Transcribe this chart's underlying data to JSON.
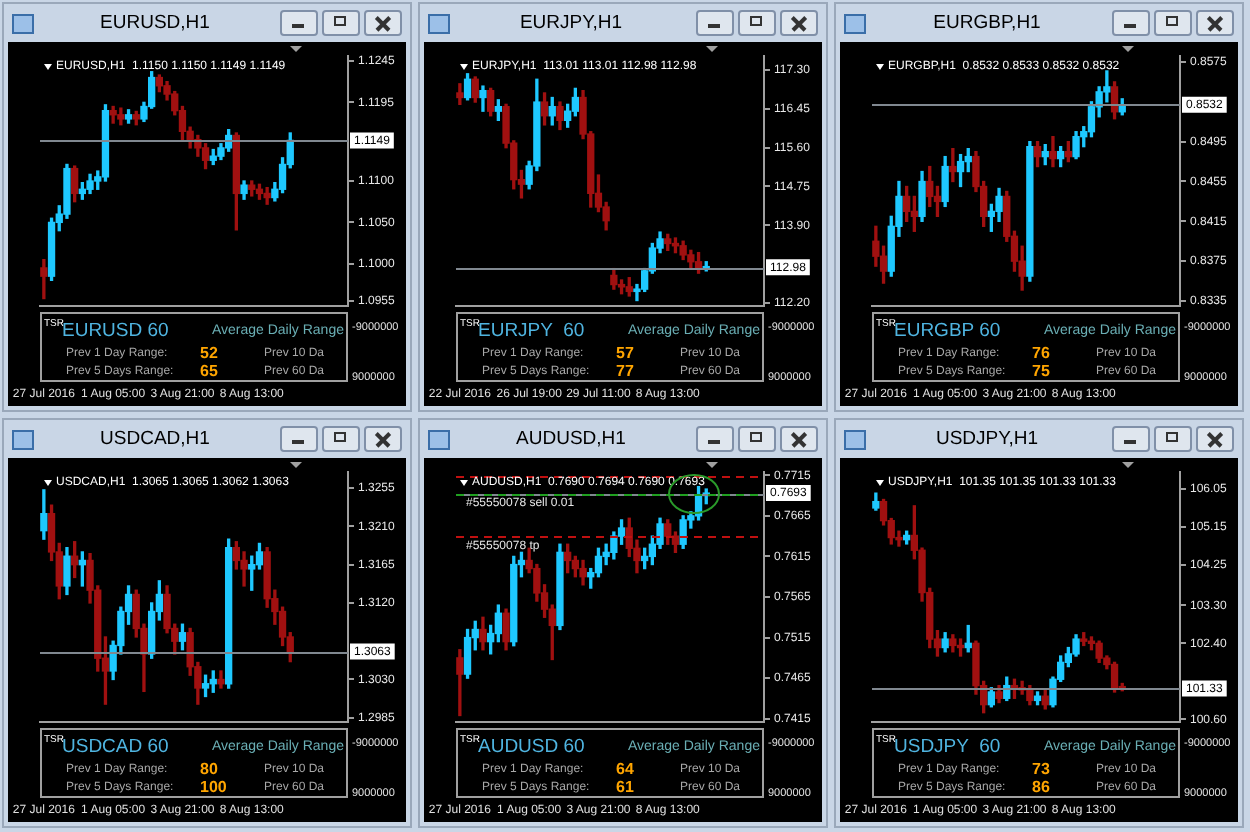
{
  "chart_data": [
    {
      "type": "candlestick",
      "title": "EURUSD,H1",
      "subtitle": "EURUSD,H1  1.1150 1.1150 1.1149 1.1149",
      "categories": [
        "27 Jul 2016",
        null,
        null,
        null,
        null,
        null,
        null,
        null,
        null,
        "1 Aug 05:00",
        null,
        null,
        null,
        null,
        null,
        null,
        null,
        null,
        "3 Aug 21:00",
        null,
        null,
        null,
        null,
        null,
        null,
        null,
        null,
        "8 Aug 13:00",
        null,
        null,
        null,
        null,
        null,
        null,
        null,
        null,
        null,
        null,
        null,
        null
      ],
      "ohlc": [
        [
          1.0995,
          1.1005,
          1.0958,
          1.0985
        ],
        [
          1.0985,
          1.1055,
          1.098,
          1.105
        ],
        [
          1.105,
          1.107,
          1.104,
          1.106
        ],
        [
          1.106,
          1.112,
          1.1055,
          1.1115
        ],
        [
          1.1115,
          1.1118,
          1.1075,
          1.1085
        ],
        [
          1.1085,
          1.1098,
          1.1078,
          1.109
        ],
        [
          1.109,
          1.1108,
          1.1085,
          1.11
        ],
        [
          1.11,
          1.1112,
          1.109,
          1.1105
        ],
        [
          1.1105,
          1.1192,
          1.11,
          1.1185
        ],
        [
          1.1185,
          1.119,
          1.117,
          1.118
        ],
        [
          1.118,
          1.1188,
          1.1168,
          1.1175
        ],
        [
          1.1175,
          1.1186,
          1.117,
          1.118
        ],
        [
          1.118,
          1.1184,
          1.1168,
          1.1175
        ],
        [
          1.1175,
          1.1195,
          1.1172,
          1.119
        ],
        [
          1.119,
          1.1232,
          1.1188,
          1.1225
        ],
        [
          1.1225,
          1.1228,
          1.1208,
          1.1215
        ],
        [
          1.1215,
          1.122,
          1.1198,
          1.1205
        ],
        [
          1.1205,
          1.1208,
          1.118,
          1.1185
        ],
        [
          1.1185,
          1.119,
          1.115,
          1.116
        ],
        [
          1.116,
          1.1165,
          1.114,
          1.115
        ],
        [
          1.115,
          1.1155,
          1.113,
          1.114
        ],
        [
          1.114,
          1.1145,
          1.1115,
          1.1125
        ],
        [
          1.1125,
          1.1138,
          1.112,
          1.113
        ],
        [
          1.113,
          1.1145,
          1.1126,
          1.114
        ],
        [
          1.114,
          1.1162,
          1.1136,
          1.1155
        ],
        [
          1.1155,
          1.1158,
          1.1041,
          1.1085
        ],
        [
          1.1085,
          1.11,
          1.1078,
          1.1095
        ],
        [
          1.1095,
          1.11,
          1.1082,
          1.109
        ],
        [
          1.109,
          1.1096,
          1.1078,
          1.1085
        ],
        [
          1.1085,
          1.1092,
          1.1072,
          1.108
        ],
        [
          1.108,
          1.1098,
          1.1076,
          1.109
        ],
        [
          1.109,
          1.1128,
          1.1086,
          1.112
        ],
        [
          1.112,
          1.1158,
          1.1116,
          1.1149
        ],
        null,
        null,
        null,
        null,
        null,
        null,
        null
      ],
      "colors": [
        "#a01010",
        "#1ec8ff",
        "#1ec8ff",
        "#1ec8ff",
        "#a01010",
        "#1ec8ff",
        "#1ec8ff",
        "#1ec8ff",
        "#1ec8ff",
        "#a01010",
        "#a01010",
        "#1ec8ff",
        "#a01010",
        "#1ec8ff",
        "#1ec8ff",
        "#a01010",
        "#a01010",
        "#a01010",
        "#a01010",
        "#a01010",
        "#a01010",
        "#a01010",
        "#1ec8ff",
        "#1ec8ff",
        "#1ec8ff",
        "#a01010",
        "#1ec8ff",
        "#a01010",
        "#a01010",
        "#a01010",
        "#1ec8ff",
        "#1ec8ff",
        "#1ec8ff",
        null,
        null,
        null,
        null,
        null,
        null,
        null
      ],
      "ylim": [
        1.0949,
        1.1251
      ],
      "yticks": [
        1.0955,
        {
          "value": 1.1,
          "label": "1.1000"
        },
        {
          "value": 1.105,
          "label": "1.1050"
        },
        {
          "value": 1.11,
          "label": "1.1100"
        },
        1.1195,
        1.1245
      ],
      "ref_lines": [
        {
          "axis": "y",
          "value": 1.1149,
          "label": "1.1149",
          "color": "#808890"
        }
      ],
      "annotations": [
        "TSR",
        "EURUSD 60",
        "Average Daily Range",
        "Prev 1 Day Range:",
        "52",
        "Prev 10 Da",
        "Prev 5 Days Range:",
        "65",
        "Prev 60 Da",
        "-9000000",
        "9000000"
      ]
    },
    {
      "type": "candlestick",
      "title": "EURJPY,H1",
      "subtitle": "EURJPY,H1  113.01 113.01 112.98 112.98",
      "categories": [
        "22 Jul 2016",
        null,
        null,
        null,
        null,
        null,
        null,
        null,
        null,
        "26 Jul 19:00",
        null,
        null,
        null,
        null,
        null,
        null,
        null,
        null,
        "29 Jul 11:00",
        null,
        null,
        null,
        null,
        null,
        null,
        null,
        null,
        "8 Aug 13:00",
        null,
        null,
        null,
        null,
        null,
        null,
        null,
        null,
        null,
        null,
        null,
        null
      ],
      "ohlc": [
        [
          116.8,
          117,
          116.55,
          116.7
        ],
        [
          116.7,
          117.22,
          116.65,
          117.1
        ],
        [
          117.1,
          117.15,
          116.6,
          116.7
        ],
        [
          116.7,
          116.95,
          116.4,
          116.85
        ],
        [
          116.85,
          116.9,
          116.3,
          116.4
        ],
        [
          116.4,
          116.65,
          116.2,
          116.5
        ],
        [
          116.5,
          116.55,
          115.6,
          115.7
        ],
        [
          115.7,
          115.75,
          114.7,
          114.9
        ],
        [
          114.9,
          115.1,
          114.5,
          114.8
        ],
        [
          114.8,
          115.3,
          114.7,
          115.2
        ],
        [
          115.2,
          117.1,
          115.1,
          116.6
        ],
        [
          116.6,
          116.8,
          116.1,
          116.3
        ],
        [
          116.3,
          116.7,
          116.1,
          116.5
        ],
        [
          116.5,
          116.6,
          116,
          116.2
        ],
        [
          116.2,
          116.55,
          116.05,
          116.4
        ],
        [
          116.4,
          116.9,
          116.3,
          116.7
        ],
        [
          116.7,
          116.85,
          115.8,
          115.9
        ],
        [
          115.9,
          115.95,
          114.3,
          114.6
        ],
        [
          114.6,
          115,
          114.2,
          114.3
        ],
        [
          114.3,
          114.4,
          113.8,
          114
        ],
        [
          112.8,
          112.95,
          112.5,
          112.6
        ],
        [
          112.6,
          112.7,
          112.4,
          112.55
        ],
        [
          112.55,
          112.75,
          112.35,
          112.45
        ],
        [
          112.45,
          112.6,
          112.25,
          112.5
        ],
        [
          112.5,
          112.95,
          112.45,
          112.9
        ],
        [
          112.9,
          113.5,
          112.85,
          113.4
        ],
        [
          113.4,
          113.75,
          113.3,
          113.6
        ],
        [
          113.6,
          113.7,
          113.35,
          113.5
        ],
        [
          113.5,
          113.62,
          113.3,
          113.45
        ],
        [
          113.45,
          113.55,
          113.15,
          113.25
        ],
        [
          113.25,
          113.35,
          112.95,
          113.1
        ],
        [
          113.1,
          113.3,
          112.85,
          112.95
        ],
        [
          112.95,
          113.1,
          112.9,
          112.98
        ],
        null,
        null,
        null,
        null,
        null,
        null,
        null
      ],
      "colors": [
        "#a01010",
        "#1ec8ff",
        "#a01010",
        "#1ec8ff",
        "#a01010",
        "#1ec8ff",
        "#a01010",
        "#a01010",
        "#a01010",
        "#1ec8ff",
        "#1ec8ff",
        "#a01010",
        "#1ec8ff",
        "#a01010",
        "#1ec8ff",
        "#1ec8ff",
        "#a01010",
        "#a01010",
        "#a01010",
        "#a01010",
        "#a01010",
        "#a01010",
        "#a01010",
        "#1ec8ff",
        "#1ec8ff",
        "#1ec8ff",
        "#1ec8ff",
        "#a01010",
        "#a01010",
        "#a01010",
        "#a01010",
        "#a01010",
        "#1ec8ff",
        null,
        null,
        null,
        null,
        null,
        null,
        null
      ],
      "ylim": [
        112.13,
        117.61
      ],
      "yticks": [
        {
          "value": 112.2,
          "label": "112.20"
        },
        {
          "value": 113.9,
          "label": "113.90"
        },
        114.75,
        {
          "value": 115.6,
          "label": "115.60"
        },
        116.45,
        {
          "value": 117.3,
          "label": "117.30"
        }
      ],
      "ref_lines": [
        {
          "axis": "y",
          "value": 112.98,
          "label": "112.98",
          "color": "#808890"
        }
      ],
      "annotations": [
        "TSR",
        "EURJPY  60",
        "Average Daily Range",
        "Prev 1 Day Range:",
        "57",
        "Prev 10 Da",
        "Prev 5 Days Range:",
        "77",
        "Prev 60 Da",
        "-9000000",
        "9000000"
      ]
    },
    {
      "type": "candlestick",
      "title": "EURGBP,H1",
      "subtitle": "EURGBP,H1  0.8532 0.8533 0.8532 0.8532",
      "categories": [
        "27 Jul 2016",
        null,
        null,
        null,
        null,
        null,
        null,
        null,
        null,
        "1 Aug 05:00",
        null,
        null,
        null,
        null,
        null,
        null,
        null,
        null,
        "3 Aug 21:00",
        null,
        null,
        null,
        null,
        null,
        null,
        null,
        null,
        "8 Aug 13:00",
        null,
        null,
        null,
        null,
        null,
        null,
        null,
        null,
        null,
        null,
        null,
        null
      ],
      "ohlc": [
        [
          0.8395,
          0.841,
          0.837,
          0.838
        ],
        [
          0.838,
          0.839,
          0.8353,
          0.8365
        ],
        [
          0.8365,
          0.842,
          0.836,
          0.841
        ],
        [
          0.841,
          0.8455,
          0.84,
          0.844
        ],
        [
          0.844,
          0.845,
          0.8415,
          0.8425
        ],
        [
          0.8425,
          0.844,
          0.8405,
          0.842
        ],
        [
          0.842,
          0.8465,
          0.8415,
          0.8455
        ],
        [
          0.8455,
          0.847,
          0.843,
          0.844
        ],
        [
          0.844,
          0.845,
          0.842,
          0.8435
        ],
        [
          0.8435,
          0.848,
          0.843,
          0.847
        ],
        [
          0.847,
          0.8488,
          0.8455,
          0.8465
        ],
        [
          0.8465,
          0.8482,
          0.845,
          0.8475
        ],
        [
          0.8475,
          0.8488,
          0.8465,
          0.848
        ],
        [
          0.848,
          0.8485,
          0.8445,
          0.845
        ],
        [
          0.845,
          0.8455,
          0.841,
          0.842
        ],
        [
          0.842,
          0.8432,
          0.8405,
          0.8425
        ],
        [
          0.8425,
          0.8448,
          0.8415,
          0.844
        ],
        [
          0.844,
          0.8445,
          0.8395,
          0.84
        ],
        [
          0.84,
          0.8405,
          0.8365,
          0.8375
        ],
        [
          0.8375,
          0.839,
          0.8346,
          0.836
        ],
        [
          0.836,
          0.8495,
          0.8355,
          0.849
        ],
        [
          0.849,
          0.8495,
          0.847,
          0.848
        ],
        [
          0.848,
          0.8492,
          0.8472,
          0.8485
        ],
        [
          0.8485,
          0.85,
          0.847,
          0.8478
        ],
        [
          0.8478,
          0.849,
          0.847,
          0.8485
        ],
        [
          0.8485,
          0.8495,
          0.8475,
          0.848
        ],
        [
          0.848,
          0.8505,
          0.8478,
          0.85
        ],
        [
          0.85,
          0.851,
          0.849,
          0.8505
        ],
        [
          0.8505,
          0.8535,
          0.85,
          0.853
        ],
        [
          0.853,
          0.855,
          0.852,
          0.8545
        ],
        [
          0.8545,
          0.8566,
          0.8535,
          0.855
        ],
        [
          0.855,
          0.8555,
          0.8518,
          0.8525
        ],
        [
          0.8525,
          0.8538,
          0.8522,
          0.8532
        ],
        null,
        null,
        null,
        null,
        null,
        null,
        null
      ],
      "colors": [
        "#a01010",
        "#a01010",
        "#1ec8ff",
        "#1ec8ff",
        "#a01010",
        "#a01010",
        "#1ec8ff",
        "#a01010",
        "#a01010",
        "#1ec8ff",
        "#a01010",
        "#1ec8ff",
        "#1ec8ff",
        "#a01010",
        "#a01010",
        "#1ec8ff",
        "#1ec8ff",
        "#a01010",
        "#a01010",
        "#a01010",
        "#1ec8ff",
        "#a01010",
        "#1ec8ff",
        "#a01010",
        "#1ec8ff",
        "#a01010",
        "#1ec8ff",
        "#1ec8ff",
        "#1ec8ff",
        "#1ec8ff",
        "#1ec8ff",
        "#a01010",
        "#1ec8ff",
        null,
        null,
        null,
        null,
        null,
        null,
        null
      ],
      "ylim": [
        0.833,
        0.8581
      ],
      "yticks": [
        0.8335,
        0.8375,
        0.8415,
        0.8455,
        0.8495,
        0.8575
      ],
      "ref_lines": [
        {
          "axis": "y",
          "value": 0.8532,
          "label": "0.8532",
          "color": "#808890"
        }
      ],
      "annotations": [
        "TSR",
        "EURGBP 60",
        "Average Daily Range",
        "Prev 1 Day Range:",
        "76",
        "Prev 10 Da",
        "Prev 5 Days Range:",
        "75",
        "Prev 60 Da",
        "-9000000",
        "9000000"
      ]
    },
    {
      "type": "candlestick",
      "title": "USDCAD,H1",
      "subtitle": "USDCAD,H1  1.3065 1.3065 1.3062 1.3063",
      "categories": [
        "27 Jul 2016",
        null,
        null,
        null,
        null,
        null,
        null,
        null,
        null,
        "1 Aug 05:00",
        null,
        null,
        null,
        null,
        null,
        null,
        null,
        null,
        "3 Aug 21:00",
        null,
        null,
        null,
        null,
        null,
        null,
        null,
        null,
        "8 Aug 13:00",
        null,
        null,
        null,
        null,
        null,
        null,
        null,
        null,
        null,
        null,
        null,
        null
      ],
      "ohlc": [
        [
          1.3205,
          1.3253,
          1.3195,
          1.3225
        ],
        [
          1.3225,
          1.3235,
          1.317,
          1.318
        ],
        [
          1.318,
          1.319,
          1.3125,
          1.314
        ],
        [
          1.314,
          1.3185,
          1.313,
          1.3175
        ],
        [
          1.3175,
          1.3192,
          1.315,
          1.3165
        ],
        [
          1.3165,
          1.318,
          1.314,
          1.317
        ],
        [
          1.317,
          1.3178,
          1.312,
          1.3135
        ],
        [
          1.3135,
          1.314,
          1.304,
          1.3055
        ],
        [
          1.3055,
          1.308,
          1.3001,
          1.304
        ],
        [
          1.304,
          1.3075,
          1.303,
          1.307
        ],
        [
          1.307,
          1.3115,
          1.306,
          1.311
        ],
        [
          1.311,
          1.314,
          1.3095,
          1.313
        ],
        [
          1.313,
          1.3135,
          1.308,
          1.309
        ],
        [
          1.309,
          1.3095,
          1.3016,
          1.306
        ],
        [
          1.306,
          1.312,
          1.3055,
          1.311
        ],
        [
          1.311,
          1.3146,
          1.31,
          1.313
        ],
        [
          1.313,
          1.314,
          1.3085,
          1.309
        ],
        [
          1.309,
          1.3095,
          1.306,
          1.3075
        ],
        [
          1.3075,
          1.3095,
          1.3065,
          1.3085
        ],
        [
          1.3085,
          1.309,
          1.3035,
          1.3045
        ],
        [
          1.3045,
          1.305,
          1.3001,
          1.302
        ],
        [
          1.302,
          1.3035,
          1.301,
          1.3025
        ],
        [
          1.3025,
          1.304,
          1.3015,
          1.303
        ],
        [
          1.303,
          1.304,
          1.302,
          1.3025
        ],
        [
          1.3025,
          1.3195,
          1.302,
          1.3185
        ],
        [
          1.3185,
          1.3192,
          1.316,
          1.317
        ],
        [
          1.317,
          1.318,
          1.314,
          1.316
        ],
        [
          1.316,
          1.3175,
          1.3135,
          1.3165
        ],
        [
          1.3165,
          1.319,
          1.316,
          1.318
        ],
        [
          1.318,
          1.3185,
          1.3115,
          1.3125
        ],
        [
          1.3125,
          1.3135,
          1.3095,
          1.311
        ],
        [
          1.311,
          1.3115,
          1.307,
          1.308
        ],
        [
          1.308,
          1.3085,
          1.3051,
          1.3063
        ],
        null,
        null,
        null,
        null,
        null,
        null,
        null
      ],
      "colors": [
        "#1ec8ff",
        "#a01010",
        "#a01010",
        "#1ec8ff",
        "#a01010",
        "#1ec8ff",
        "#a01010",
        "#a01010",
        "#a01010",
        "#1ec8ff",
        "#1ec8ff",
        "#1ec8ff",
        "#a01010",
        "#a01010",
        "#1ec8ff",
        "#1ec8ff",
        "#a01010",
        "#a01010",
        "#1ec8ff",
        "#a01010",
        "#a01010",
        "#1ec8ff",
        "#1ec8ff",
        "#a01010",
        "#1ec8ff",
        "#a01010",
        "#a01010",
        "#1ec8ff",
        "#1ec8ff",
        "#a01010",
        "#a01010",
        "#a01010",
        "#a01010",
        null,
        null,
        null,
        null,
        null,
        null,
        null
      ],
      "ylim": [
        1.298,
        1.3274
      ],
      "yticks": [
        1.2985,
        {
          "value": 1.303,
          "label": "1.3030"
        },
        {
          "value": 1.312,
          "label": "1.3120"
        },
        1.3165,
        {
          "value": 1.321,
          "label": "1.3210"
        },
        1.3255
      ],
      "ref_lines": [
        {
          "axis": "y",
          "value": 1.3063,
          "label": "1.3063",
          "color": "#808890"
        }
      ],
      "annotations": [
        "TSR",
        "USDCAD 60",
        "Average Daily Range",
        "Prev 1 Day Range:",
        "80",
        "Prev 10 Da",
        "Prev 5 Days Range:",
        "100",
        "Prev 60 Da",
        "-9000000",
        "9000000"
      ]
    },
    {
      "type": "candlestick",
      "title": "AUDUSD,H1",
      "subtitle": "AUDUSD,H1  0.7690 0.7694 0.7690 0.7693",
      "categories": [
        "27 Jul 2016",
        null,
        null,
        null,
        null,
        null,
        null,
        null,
        null,
        "1 Aug 05:00",
        null,
        null,
        null,
        null,
        null,
        null,
        null,
        null,
        "3 Aug 21:00",
        null,
        null,
        null,
        null,
        null,
        null,
        null,
        null,
        "8 Aug 13:00",
        null,
        null,
        null,
        null,
        null,
        null,
        null,
        null,
        null,
        null,
        null,
        null
      ],
      "ohlc": [
        [
          0.749,
          0.75,
          0.7419,
          0.747
        ],
        [
          0.747,
          0.7525,
          0.7465,
          0.7515
        ],
        [
          0.7515,
          0.7535,
          0.75,
          0.7525
        ],
        [
          0.7525,
          0.754,
          0.75,
          0.751
        ],
        [
          0.751,
          0.753,
          0.7495,
          0.752
        ],
        [
          0.752,
          0.7555,
          0.751,
          0.7545
        ],
        [
          0.7545,
          0.755,
          0.75,
          0.751
        ],
        [
          0.751,
          0.7615,
          0.7505,
          0.7605
        ],
        [
          0.7605,
          0.762,
          0.759,
          0.761
        ],
        [
          0.761,
          0.7625,
          0.7595,
          0.76
        ],
        [
          0.76,
          0.7605,
          0.756,
          0.757
        ],
        [
          0.757,
          0.758,
          0.754,
          0.755
        ],
        [
          0.755,
          0.7555,
          0.7488,
          0.753
        ],
        [
          0.753,
          0.763,
          0.7525,
          0.762
        ],
        [
          0.762,
          0.763,
          0.7595,
          0.761
        ],
        [
          0.761,
          0.7615,
          0.759,
          0.76
        ],
        [
          0.76,
          0.761,
          0.758,
          0.759
        ],
        [
          0.759,
          0.76,
          0.7576,
          0.7595
        ],
        [
          0.7595,
          0.7625,
          0.759,
          0.7615
        ],
        [
          0.7615,
          0.763,
          0.7605,
          0.762
        ],
        [
          0.762,
          0.7645,
          0.7612,
          0.764
        ],
        [
          0.764,
          0.766,
          0.763,
          0.765
        ],
        [
          0.765,
          0.7662,
          0.7615,
          0.7625
        ],
        [
          0.7625,
          0.7635,
          0.7595,
          0.761
        ],
        [
          0.761,
          0.7625,
          0.76,
          0.7615
        ],
        [
          0.7615,
          0.764,
          0.7605,
          0.763
        ],
        [
          0.763,
          0.7662,
          0.7625,
          0.7655
        ],
        [
          0.7655,
          0.766,
          0.763,
          0.764
        ],
        [
          0.764,
          0.7645,
          0.762,
          0.763
        ],
        [
          0.763,
          0.7665,
          0.7625,
          0.766
        ],
        [
          0.766,
          0.767,
          0.765,
          0.7665
        ],
        [
          0.7665,
          0.7701,
          0.766,
          0.769
        ],
        [
          0.769,
          0.7698,
          0.768,
          0.7693
        ],
        null,
        null,
        null,
        null,
        null,
        null,
        null
      ],
      "colors": [
        "#a01010",
        "#1ec8ff",
        "#1ec8ff",
        "#a01010",
        "#1ec8ff",
        "#1ec8ff",
        "#a01010",
        "#1ec8ff",
        "#1ec8ff",
        "#a01010",
        "#a01010",
        "#a01010",
        "#a01010",
        "#1ec8ff",
        "#a01010",
        "#a01010",
        "#a01010",
        "#1ec8ff",
        "#1ec8ff",
        "#1ec8ff",
        "#1ec8ff",
        "#1ec8ff",
        "#a01010",
        "#a01010",
        "#1ec8ff",
        "#1ec8ff",
        "#1ec8ff",
        "#a01010",
        "#a01010",
        "#1ec8ff",
        "#1ec8ff",
        "#1ec8ff",
        "#1ec8ff",
        null,
        null,
        null,
        null,
        null,
        null,
        null
      ],
      "ylim": [
        0.7411,
        0.7719
      ],
      "yticks": [
        0.7415,
        0.7465,
        0.7515,
        0.7565,
        0.7615,
        0.7665,
        0.7715
      ],
      "ref_lines": [
        {
          "axis": "y",
          "value": 0.7693,
          "label": "0.7693",
          "color": "#808890"
        },
        {
          "axis": "y",
          "value": 0.7715,
          "label": null,
          "color": "#c01010",
          "line_style": "dashed"
        },
        {
          "axis": "y",
          "value": 0.7693,
          "label": "#55550078 sell 0.01",
          "color": "#20a020",
          "line_style": "dashed"
        },
        {
          "axis": "y",
          "value": 0.764,
          "label": "#55550078 tp",
          "color": "#c01010",
          "line_style": "dashed"
        }
      ],
      "annotations": [
        "TSR",
        "AUDUSD 60",
        "Average Daily Range",
        "Prev 1 Day Range:",
        "64",
        "Prev 10 Da",
        "Prev 5 Days Range:",
        "61",
        "Prev 60 Da",
        "-9000000",
        "9000000"
      ]
    },
    {
      "type": "candlestick",
      "title": "USDJPY,H1",
      "subtitle": "USDJPY,H1  101.35 101.35 101.33 101.33",
      "categories": [
        "27 Jul 2016",
        null,
        null,
        null,
        null,
        null,
        null,
        null,
        null,
        "1 Aug 05:00",
        null,
        null,
        null,
        null,
        null,
        null,
        null,
        null,
        "3 Aug 21:00",
        null,
        null,
        null,
        null,
        null,
        null,
        null,
        null,
        "8 Aug 13:00",
        null,
        null,
        null,
        null,
        null,
        null,
        null,
        null,
        null,
        null,
        null,
        null
      ],
      "ohlc": [
        [
          105.6,
          105.95,
          105.55,
          105.75
        ],
        [
          105.75,
          105.8,
          105.2,
          105.3
        ],
        [
          105.3,
          105.35,
          104.75,
          104.9
        ],
        [
          104.9,
          105.05,
          104.7,
          104.85
        ],
        [
          104.85,
          105.05,
          104.75,
          104.95
        ],
        [
          104.95,
          105.65,
          104.4,
          104.6
        ],
        [
          104.6,
          104.65,
          103.4,
          103.6
        ],
        [
          103.6,
          103.7,
          102.3,
          102.5
        ],
        [
          102.5,
          102.7,
          102.1,
          102.3
        ],
        [
          102.3,
          102.65,
          102.2,
          102.5
        ],
        [
          102.5,
          102.6,
          102.2,
          102.35
        ],
        [
          102.35,
          102.5,
          102.1,
          102.3
        ],
        [
          102.3,
          102.82,
          102.2,
          102.4
        ],
        [
          102.4,
          102.45,
          101.2,
          101.4
        ],
        [
          101.4,
          101.5,
          100.76,
          100.95
        ],
        [
          100.95,
          101.35,
          100.9,
          101.25
        ],
        [
          101.25,
          101.4,
          101,
          101.1
        ],
        [
          101.1,
          101.6,
          101.05,
          101.4
        ],
        [
          101.4,
          101.55,
          101.1,
          101.35
        ],
        [
          101.35,
          101.5,
          101.2,
          101.3
        ],
        [
          101.3,
          101.4,
          100.95,
          101.05
        ],
        [
          101.05,
          101.25,
          100.95,
          101.15
        ],
        [
          101.15,
          101.3,
          100.85,
          100.95
        ],
        [
          100.95,
          101.6,
          100.9,
          101.55
        ],
        [
          101.55,
          102.1,
          101.5,
          101.95
        ],
        [
          101.95,
          102.3,
          101.85,
          102.15
        ],
        [
          102.15,
          102.6,
          102.1,
          102.5
        ],
        [
          102.5,
          102.65,
          102.35,
          102.45
        ],
        [
          102.45,
          102.55,
          102.25,
          102.4
        ],
        [
          102.4,
          102.45,
          101.95,
          102.05
        ],
        [
          102.05,
          102.1,
          101.8,
          101.9
        ],
        [
          101.9,
          101.95,
          101.25,
          101.35
        ],
        [
          101.35,
          101.45,
          101.28,
          101.33
        ],
        null,
        null,
        null,
        null,
        null,
        null,
        null
      ],
      "colors": [
        "#1ec8ff",
        "#a01010",
        "#a01010",
        "#a01010",
        "#1ec8ff",
        "#a01010",
        "#a01010",
        "#a01010",
        "#a01010",
        "#1ec8ff",
        "#a01010",
        "#a01010",
        "#1ec8ff",
        "#a01010",
        "#a01010",
        "#1ec8ff",
        "#a01010",
        "#1ec8ff",
        "#a01010",
        "#a01010",
        "#a01010",
        "#1ec8ff",
        "#a01010",
        "#1ec8ff",
        "#1ec8ff",
        "#1ec8ff",
        "#1ec8ff",
        "#a01010",
        "#a01010",
        "#a01010",
        "#a01010",
        "#a01010",
        "#a01010",
        null,
        null,
        null,
        null,
        null,
        null,
        null
      ],
      "ylim": [
        100.54,
        106.45
      ],
      "yticks": [
        {
          "value": 100.6,
          "label": "100.60"
        },
        {
          "value": 102.4,
          "label": "102.40"
        },
        {
          "value": 103.3,
          "label": "103.30"
        },
        104.25,
        105.15,
        106.05
      ],
      "ref_lines": [
        {
          "axis": "y",
          "value": 101.33,
          "label": "101.33",
          "color": "#808890"
        }
      ],
      "annotations": [
        "TSR",
        "USDJPY  60",
        "Average Daily Range",
        "Prev 1 Day Range:",
        "73",
        "Prev 10 Da",
        "Prev 5 Days Range:",
        "86",
        "Prev 60 Da",
        "-9000000",
        "9000000"
      ]
    }
  ]
}
